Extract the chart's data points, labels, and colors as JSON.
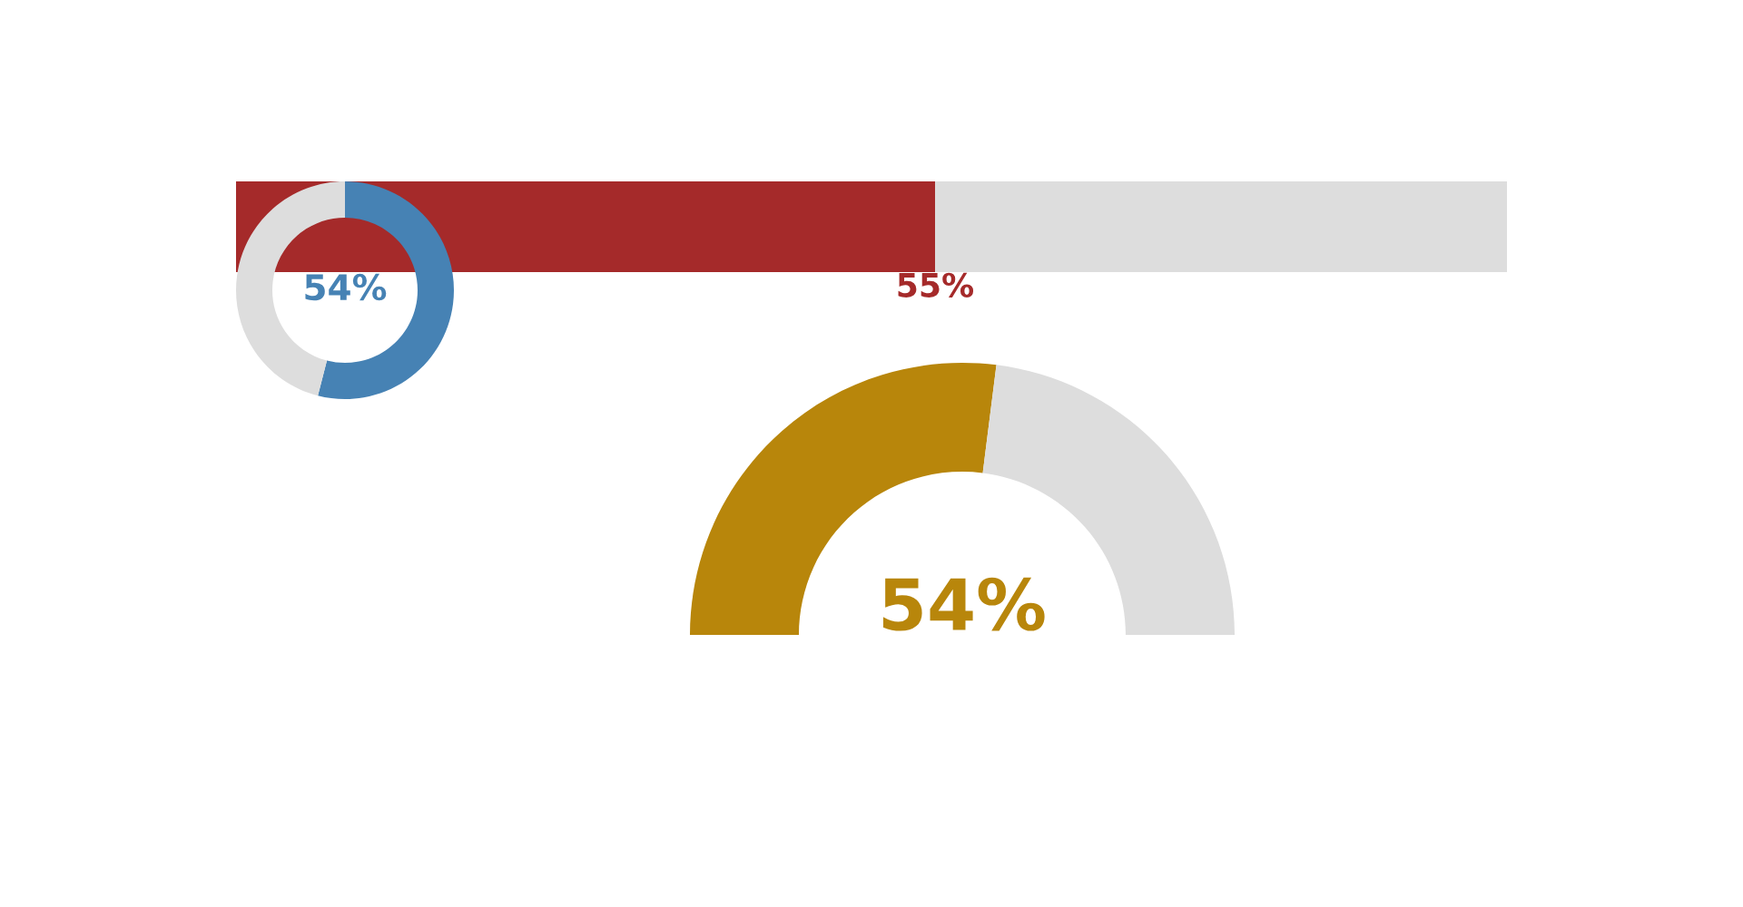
{
  "chart_data": [
    {
      "type": "bar",
      "orientation": "horizontal",
      "stacked": true,
      "categories": [
        null
      ],
      "series": [
        {
          "color": "#a52a2a",
          "values": [
            55
          ],
          "value_labels": [
            "55%"
          ]
        },
        {
          "color": "#dddddd",
          "values": [
            45
          ],
          "value_labels": [
            null
          ]
        }
      ]
    },
    {
      "type": "donut",
      "categories": [
        null,
        null
      ],
      "values": [
        54,
        46
      ],
      "colors": [
        "#4682b4",
        "#dddddd"
      ],
      "value_labels": [
        "54%",
        null
      ]
    },
    {
      "type": "donut",
      "categories": [
        null,
        null
      ],
      "values": [
        54,
        46
      ],
      "colors": [
        "#b8860b",
        "#dddddd"
      ],
      "value_labels": [
        "54%",
        null
      ]
    }
  ]
}
